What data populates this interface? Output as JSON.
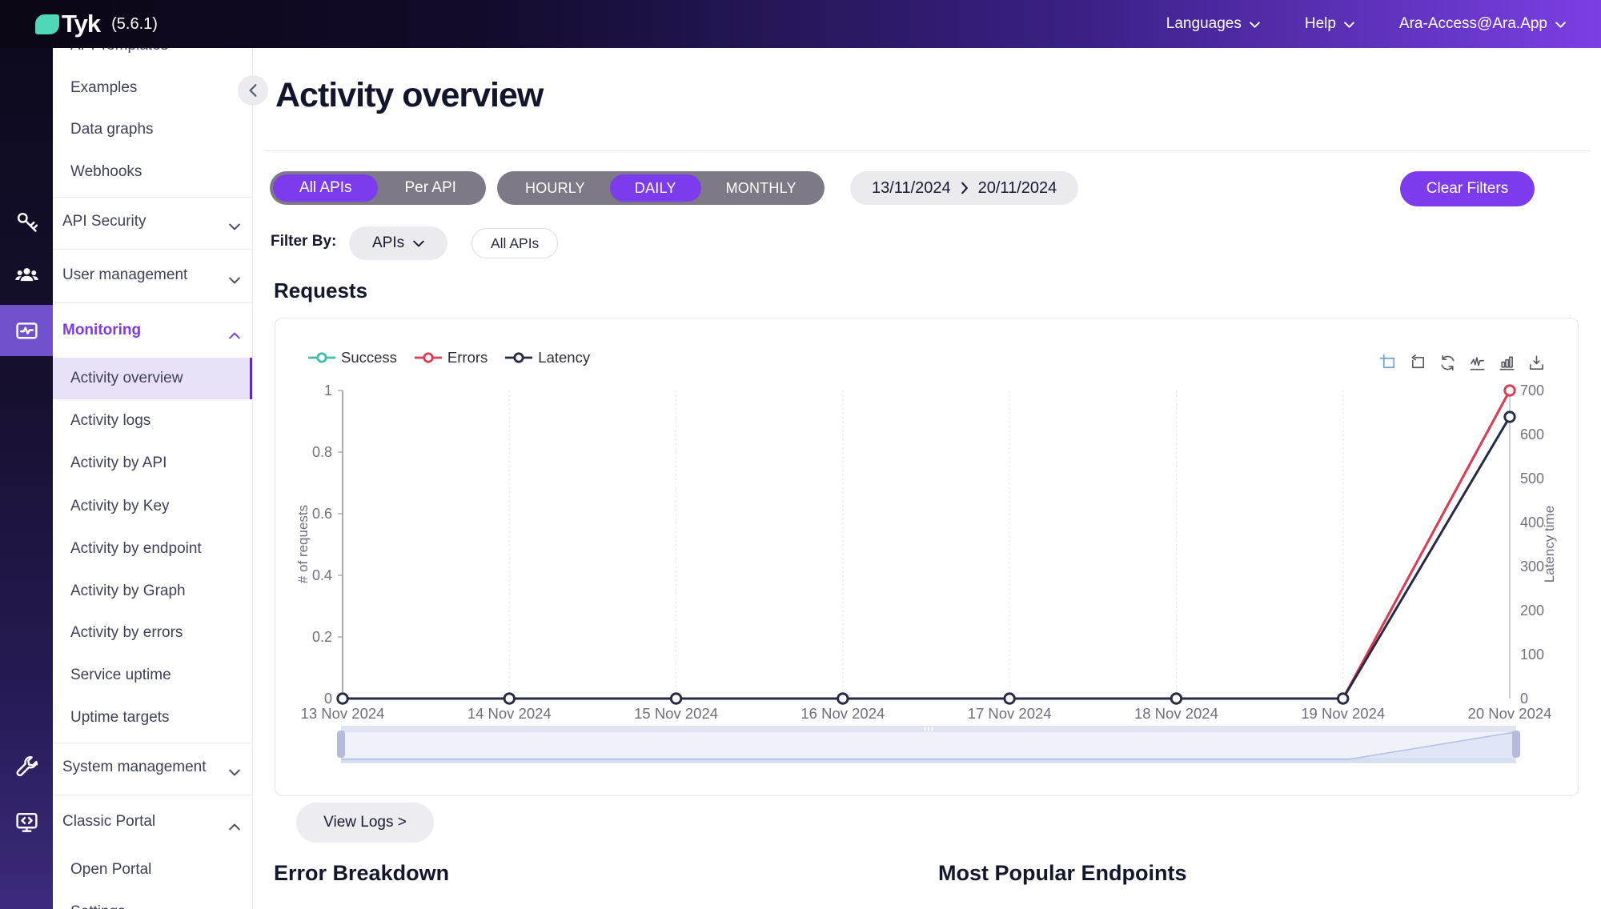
{
  "header": {
    "logo": "Tyk",
    "version": "(5.6.1)",
    "nav": [
      {
        "label": "Languages"
      },
      {
        "label": "Help"
      },
      {
        "label": "Ara-Access@Ara.App"
      }
    ]
  },
  "sidebar": {
    "items": [
      {
        "label": "API Templates",
        "type": "sub"
      },
      {
        "label": "Examples",
        "type": "sub"
      },
      {
        "label": "Data graphs",
        "type": "sub"
      },
      {
        "label": "Webhooks",
        "type": "sub"
      },
      {
        "label": "API Security",
        "type": "section",
        "state": "collapsed"
      },
      {
        "label": "User management",
        "type": "section",
        "state": "collapsed"
      },
      {
        "label": "Monitoring",
        "type": "section",
        "state": "expanded",
        "accent": true
      },
      {
        "label": "Activity overview",
        "type": "sub",
        "selected": true
      },
      {
        "label": "Activity logs",
        "type": "sub"
      },
      {
        "label": "Activity by API",
        "type": "sub"
      },
      {
        "label": "Activity by Key",
        "type": "sub"
      },
      {
        "label": "Activity by endpoint",
        "type": "sub"
      },
      {
        "label": "Activity by Graph",
        "type": "sub"
      },
      {
        "label": "Activity by errors",
        "type": "sub"
      },
      {
        "label": "Service uptime",
        "type": "sub"
      },
      {
        "label": "Uptime targets",
        "type": "sub"
      },
      {
        "label": "System management",
        "type": "section",
        "state": "collapsed"
      },
      {
        "label": "Classic Portal",
        "type": "section",
        "state": "expanded"
      },
      {
        "label": "Open Portal",
        "type": "sub"
      },
      {
        "label": "Settings",
        "type": "sub"
      }
    ],
    "strip_icons": [
      "key-icon",
      "users-icon",
      "monitoring-icon",
      "wrench-icon",
      "portal-monitor-icon"
    ]
  },
  "main": {
    "title": "Activity overview",
    "api_scope": {
      "options": [
        "All APIs",
        "Per API"
      ],
      "selected": "All APIs"
    },
    "granularity": {
      "options": [
        "HOURLY",
        "DAILY",
        "MONTHLY"
      ],
      "selected": "DAILY"
    },
    "date_range": {
      "start": "13/11/2024",
      "end": "20/11/2024"
    },
    "clear_filters": "Clear Filters",
    "filter_by": {
      "label": "Filter By:",
      "dropdown": "APIs",
      "chip": "All APIs"
    },
    "requests_heading": "Requests",
    "view_logs": "View Logs >",
    "error_breakdown": "Error Breakdown",
    "most_popular": "Most Popular Endpoints"
  },
  "chart_data": {
    "type": "line",
    "categories": [
      "13 Nov 2024",
      "14 Nov 2024",
      "15 Nov 2024",
      "16 Nov 2024",
      "17 Nov 2024",
      "18 Nov 2024",
      "19 Nov 2024",
      "20 Nov 2024"
    ],
    "series": [
      {
        "name": "Success",
        "color": "#3dbfa7",
        "axis": "left",
        "values": [
          0,
          0,
          0,
          0,
          0,
          0,
          0,
          1
        ]
      },
      {
        "name": "Errors",
        "color": "#e23a55",
        "axis": "left",
        "values": [
          0,
          0,
          0,
          0,
          0,
          0,
          0,
          1
        ]
      },
      {
        "name": "Latency",
        "color": "#262a47",
        "axis": "right",
        "values": [
          0,
          0,
          0,
          0,
          0,
          0,
          0,
          640
        ]
      }
    ],
    "y_left": {
      "label": "# of requests",
      "min": 0,
      "max": 1,
      "ticks": [
        0,
        0.2,
        0.4,
        0.6,
        0.8,
        1
      ]
    },
    "y_right": {
      "label": "Latency time",
      "min": 0,
      "max": 700,
      "ticks": [
        0,
        100,
        200,
        300,
        400,
        500,
        600,
        700
      ]
    },
    "legend_position": "top-left",
    "grid": "vertical-dotted",
    "toolbar": [
      "zoom-select",
      "zoom-reset",
      "restore",
      "line-chart",
      "bar-chart",
      "download"
    ],
    "datazoom": {
      "start_percent": 0,
      "end_percent": 100
    }
  }
}
